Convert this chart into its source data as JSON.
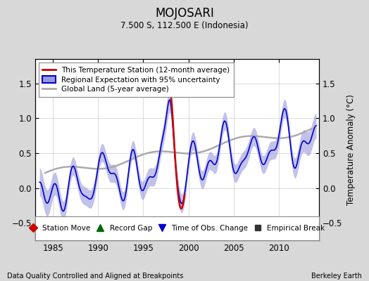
{
  "title": "MOJOSARI",
  "subtitle": "7.500 S, 112.500 E (Indonesia)",
  "ylabel": "Temperature Anomaly (°C)",
  "xlabel_bottom_left": "Data Quality Controlled and Aligned at Breakpoints",
  "xlabel_bottom_right": "Berkeley Earth",
  "ylim": [
    -0.75,
    1.85
  ],
  "xlim": [
    1983.0,
    2014.5
  ],
  "yticks": [
    -0.5,
    0.0,
    0.5,
    1.0,
    1.5
  ],
  "xticks": [
    1985,
    1990,
    1995,
    2000,
    2005,
    2010
  ],
  "bg_color": "#d8d8d8",
  "plot_bg_color": "#ffffff",
  "regional_color": "#0000cc",
  "regional_fill_color": "#9999dd",
  "station_color": "#cc0000",
  "global_color": "#aaaaaa",
  "legend1": [
    {
      "label": "This Temperature Station (12-month average)",
      "color": "#cc0000",
      "lw": 2
    },
    {
      "label": "Regional Expectation with 95% uncertainty",
      "color": "#0000cc",
      "lw": 2
    },
    {
      "label": "Global Land (5-year average)",
      "color": "#aaaaaa",
      "lw": 2
    }
  ],
  "legend2": [
    {
      "label": "Station Move",
      "marker": "D",
      "color": "#cc0000"
    },
    {
      "label": "Record Gap",
      "marker": "^",
      "color": "#006600"
    },
    {
      "label": "Time of Obs. Change",
      "marker": "v",
      "color": "#0000cc"
    },
    {
      "label": "Empirical Break",
      "marker": "s",
      "color": "#333333"
    }
  ]
}
